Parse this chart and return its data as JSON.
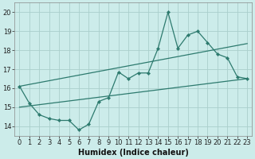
{
  "xlabel": "Humidex (Indice chaleur)",
  "background_color": "#ccecea",
  "grid_color": "#aacfcc",
  "line_color": "#2d7a6e",
  "xlim": [
    -0.5,
    23.5
  ],
  "ylim": [
    13.5,
    20.5
  ],
  "xticks": [
    0,
    1,
    2,
    3,
    4,
    5,
    6,
    7,
    8,
    9,
    10,
    11,
    12,
    13,
    14,
    15,
    16,
    17,
    18,
    19,
    20,
    21,
    22,
    23
  ],
  "yticks": [
    14,
    15,
    16,
    17,
    18,
    19,
    20
  ],
  "main_line_x": [
    0,
    1,
    2,
    3,
    4,
    5,
    6,
    7,
    8,
    9,
    10,
    11,
    12,
    13,
    14,
    15,
    16,
    17,
    18,
    19,
    20,
    21,
    22,
    23
  ],
  "main_line_y": [
    16.1,
    15.2,
    14.6,
    14.4,
    14.3,
    14.3,
    13.8,
    14.1,
    15.3,
    15.5,
    16.85,
    16.5,
    16.8,
    16.8,
    18.1,
    20.0,
    18.1,
    18.8,
    19.0,
    18.4,
    17.8,
    17.6,
    16.6,
    16.5
  ],
  "upper_line_x": [
    0,
    23
  ],
  "upper_line_y": [
    16.1,
    18.35
  ],
  "lower_line_x": [
    0,
    23
  ],
  "lower_line_y": [
    15.0,
    16.5
  ],
  "xlabel_fontsize": 7,
  "tick_fontsize": 6
}
